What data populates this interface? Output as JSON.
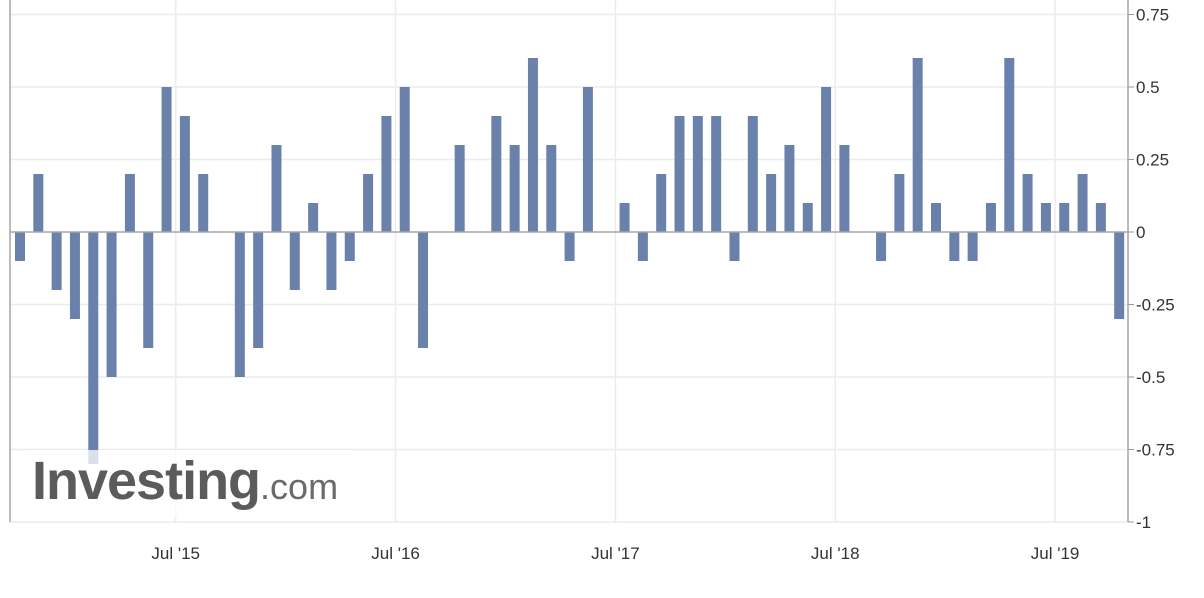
{
  "chart_data": {
    "type": "bar",
    "title": "",
    "xlabel": "",
    "ylabel": "",
    "x": [
      "2014-10",
      "2014-11",
      "2014-12",
      "2015-01",
      "2015-02",
      "2015-03",
      "2015-04",
      "2015-05",
      "2015-06",
      "2015-07",
      "2015-08",
      "2015-09",
      "2015-10",
      "2015-11",
      "2015-12",
      "2016-01",
      "2016-02",
      "2016-03",
      "2016-04",
      "2016-05",
      "2016-06",
      "2016-07",
      "2016-08",
      "2016-09",
      "2016-10",
      "2016-11",
      "2016-12",
      "2017-01",
      "2017-02",
      "2017-03",
      "2017-04",
      "2017-05",
      "2017-06",
      "2017-07",
      "2017-08",
      "2017-09",
      "2017-10",
      "2017-11",
      "2017-12",
      "2018-01",
      "2018-02",
      "2018-03",
      "2018-04",
      "2018-05",
      "2018-06",
      "2018-07",
      "2018-08",
      "2018-09",
      "2018-10",
      "2018-11",
      "2018-12",
      "2019-01",
      "2019-02",
      "2019-03",
      "2019-04",
      "2019-05",
      "2019-06",
      "2019-07",
      "2019-08",
      "2019-09",
      "2019-10"
    ],
    "values": [
      -0.1,
      0.2,
      -0.2,
      -0.3,
      -0.8,
      -0.5,
      0.2,
      -0.4,
      0.5,
      0.4,
      0.2,
      0,
      -0.5,
      -0.4,
      0.3,
      -0.2,
      0.1,
      -0.2,
      -0.1,
      0.2,
      0.4,
      0.5,
      -0.4,
      0,
      0.3,
      0,
      0.4,
      0.3,
      0.6,
      0.3,
      -0.1,
      0.5,
      0,
      0.1,
      -0.1,
      0.2,
      0.4,
      0.4,
      0.4,
      -0.1,
      0.4,
      0.2,
      0.3,
      0.1,
      0.5,
      0.3,
      0,
      -0.1,
      0.2,
      0.6,
      0.1,
      -0.1,
      -0.1,
      0.1,
      0.6,
      0.2,
      0.1,
      0.1,
      0.2,
      0.1,
      -0.3
    ],
    "x_tick_labels": [
      "Jul '15",
      "Jul '16",
      "Jul '17",
      "Jul '18",
      "Jul '19"
    ],
    "x_tick_months": [
      "2015-07",
      "2016-07",
      "2017-07",
      "2018-07",
      "2019-07"
    ],
    "y_tick_labels": [
      "0.75",
      "0.5",
      "0.25",
      "0",
      "-0.25",
      "-0.5",
      "-0.75",
      "-1"
    ],
    "y_ticks": [
      0.75,
      0.5,
      0.25,
      0,
      -0.25,
      -0.5,
      -0.75,
      -1
    ],
    "ylim": [
      -1,
      0.75
    ],
    "y_axis_side": "right",
    "grid": true,
    "bar_color": "#6a82ab"
  },
  "watermark": {
    "brand": "Investing",
    "suffix": ".com"
  }
}
